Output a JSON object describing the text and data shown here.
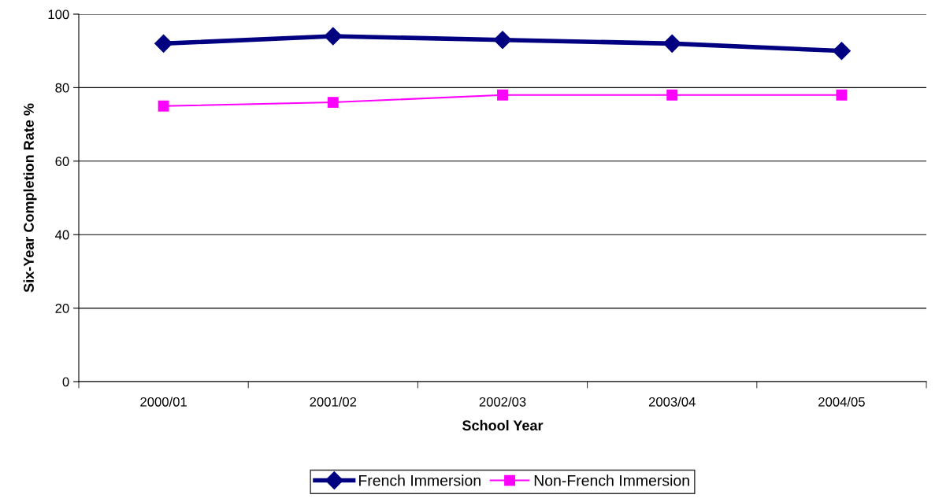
{
  "chart_data": {
    "type": "line",
    "xlabel": "School Year",
    "ylabel": "Six-Year Completion Rate %",
    "categories": [
      "2000/01",
      "2001/02",
      "2002/03",
      "2003/04",
      "2004/05"
    ],
    "series": [
      {
        "name": "French Immersion",
        "color": "#000080",
        "marker": "diamond",
        "values": [
          92,
          94,
          93,
          92,
          90
        ]
      },
      {
        "name": "Non-French Immersion",
        "color": "#ff00ff",
        "marker": "square",
        "values": [
          75,
          76,
          78,
          78,
          78
        ]
      }
    ],
    "ylim": [
      0,
      100
    ],
    "yticks": [
      0,
      20,
      40,
      60,
      80,
      100
    ],
    "grid": "y",
    "legend": "bottom",
    "line_style": "solid"
  }
}
